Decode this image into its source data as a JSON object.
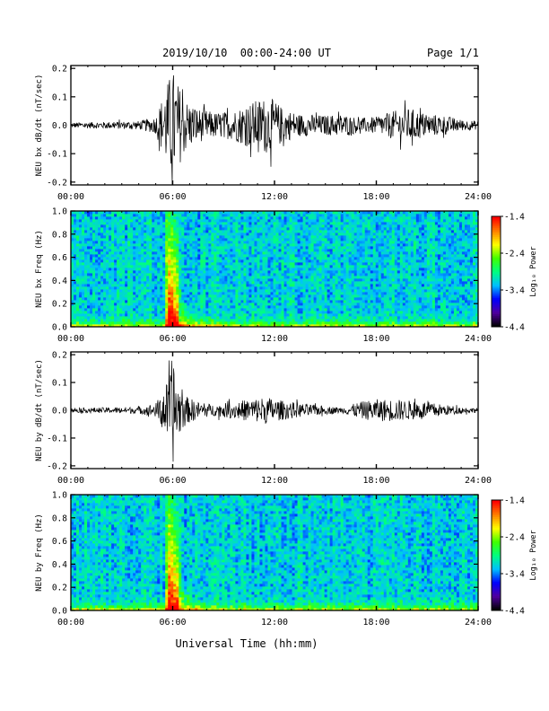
{
  "header": {
    "title": "2019/10/10  00:00-24:00 UT",
    "page": "Page 1/1"
  },
  "footer": {
    "xlabel": "Universal Time (hh:mm)"
  },
  "chart_data": [
    {
      "type": "line",
      "name": "bx-waveform",
      "ylabel": "NEU bx dB/dt (nT/sec)",
      "xlim": [
        0,
        24
      ],
      "ylim": [
        -0.21,
        0.21
      ],
      "xticks": [
        "00:00",
        "06:00",
        "12:00",
        "18:00",
        "24:00"
      ],
      "yticks": [
        -0.2,
        -0.1,
        0.0,
        0.1,
        0.2
      ],
      "ytick_labels": [
        "-0.2",
        "-0.1",
        "0.0",
        "0.1",
        "0.2"
      ],
      "envelope": {
        "x": [
          0,
          2,
          4,
          5.0,
          5.5,
          5.8,
          6.0,
          6.3,
          6.8,
          7.5,
          8.5,
          9.5,
          10.5,
          11.5,
          12.0,
          12.5,
          13.5,
          15,
          16,
          17,
          18,
          19,
          20,
          21,
          22,
          23,
          24
        ],
        "amplitude": [
          0.01,
          0.012,
          0.015,
          0.03,
          0.12,
          0.17,
          0.2,
          0.15,
          0.09,
          0.06,
          0.045,
          0.05,
          0.08,
          0.1,
          0.09,
          0.06,
          0.04,
          0.035,
          0.04,
          0.025,
          0.03,
          0.05,
          0.06,
          0.04,
          0.035,
          0.02,
          0.015
        ]
      },
      "color": "#000000"
    },
    {
      "type": "heatmap",
      "name": "bx-spectrogram",
      "ylabel": "NEU bx Freq (Hz)",
      "xlim": [
        0,
        24
      ],
      "ylim": [
        0,
        1.0
      ],
      "xticks": [
        "00:00",
        "06:00",
        "12:00",
        "18:00",
        "24:00"
      ],
      "yticks": [
        0.0,
        0.2,
        0.4,
        0.6,
        0.8,
        1.0
      ],
      "ytick_labels": [
        "0.0",
        "0.2",
        "0.4",
        "0.6",
        "0.8",
        "1.0"
      ],
      "colorbar": {
        "label": "Log₁₀ Power",
        "range": [
          -4.4,
          -1.4
        ],
        "tick_labels": [
          "-1.4",
          "-2.4",
          "-3.4",
          "-4.4"
        ],
        "colors": [
          "#000000",
          "#5000a0",
          "#0000ff",
          "#00c0ff",
          "#00ff80",
          "#40ff00",
          "#ffff00",
          "#ff8000",
          "#ff0000"
        ]
      },
      "burst_time": 6.0
    },
    {
      "type": "line",
      "name": "by-waveform",
      "ylabel": "NEU by dB/dt (nT/sec)",
      "xlim": [
        0,
        24
      ],
      "ylim": [
        -0.21,
        0.21
      ],
      "xticks": [
        "00:00",
        "06:00",
        "12:00",
        "18:00",
        "24:00"
      ],
      "yticks": [
        -0.2,
        -0.1,
        0.0,
        0.1,
        0.2
      ],
      "ytick_labels": [
        "-0.2",
        "-0.1",
        "0.0",
        "0.1",
        "0.2"
      ],
      "envelope": {
        "x": [
          0,
          2,
          4,
          5.0,
          5.5,
          5.8,
          6.0,
          6.3,
          6.8,
          7.5,
          8.5,
          9.5,
          10.5,
          11.5,
          12.0,
          12.5,
          13.5,
          15,
          16,
          17,
          18,
          19,
          20,
          21,
          22,
          23,
          24
        ],
        "amplitude": [
          0.008,
          0.01,
          0.012,
          0.025,
          0.08,
          0.12,
          0.2,
          0.1,
          0.05,
          0.03,
          0.02,
          0.03,
          0.04,
          0.05,
          0.04,
          0.035,
          0.025,
          0.015,
          0.01,
          0.03,
          0.04,
          0.04,
          0.035,
          0.03,
          0.02,
          0.012,
          0.008
        ]
      },
      "color": "#000000"
    },
    {
      "type": "heatmap",
      "name": "by-spectrogram",
      "ylabel": "NEU by Freq (Hz)",
      "xlim": [
        0,
        24
      ],
      "ylim": [
        0,
        1.0
      ],
      "xticks": [
        "00:00",
        "06:00",
        "12:00",
        "18:00",
        "24:00"
      ],
      "yticks": [
        0.0,
        0.2,
        0.4,
        0.6,
        0.8,
        1.0
      ],
      "ytick_labels": [
        "0.0",
        "0.2",
        "0.4",
        "0.6",
        "0.8",
        "1.0"
      ],
      "colorbar": {
        "label": "Log₁₀ Power",
        "range": [
          -4.4,
          -1.4
        ],
        "tick_labels": [
          "-1.4",
          "-2.4",
          "-3.4",
          "-4.4"
        ],
        "colors": [
          "#000000",
          "#5000a0",
          "#0000ff",
          "#00c0ff",
          "#00ff80",
          "#40ff00",
          "#ffff00",
          "#ff8000",
          "#ff0000"
        ]
      },
      "burst_time": 6.0
    }
  ]
}
